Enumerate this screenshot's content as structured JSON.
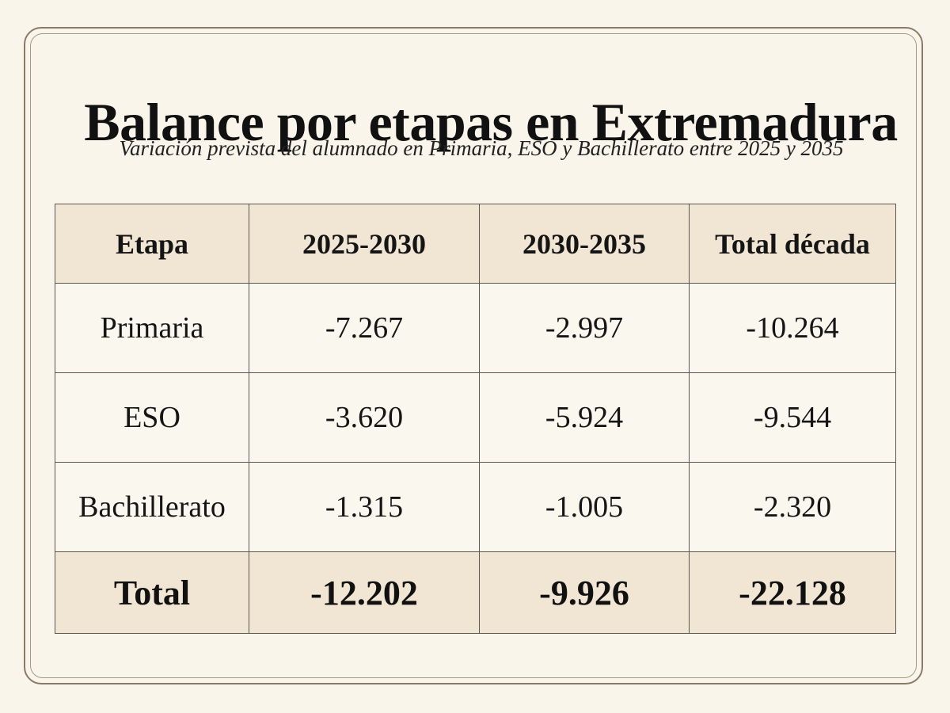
{
  "title": "Balance por etapas en Extremadura",
  "subtitle": "Variación prevista del alumnado en Primaria, ESO y Bachillerato entre 2025 y 2035",
  "table": {
    "headers": [
      "Etapa",
      "2025-2030",
      "2030-2035",
      "Total década"
    ],
    "rows": [
      [
        "Primaria",
        "-7.267",
        "-2.997",
        "-10.264"
      ],
      [
        "ESO",
        "-3.620",
        "-5.924",
        "-9.544"
      ],
      [
        "Bachillerato",
        "-1.315",
        "-1.005",
        "-2.320"
      ]
    ],
    "total_row": [
      "Total",
      "-12.202",
      "-9.926",
      "-22.128"
    ]
  },
  "colors": {
    "background": "#f9f5ea",
    "header_fill": "#f1e5d4",
    "border": "#5c5550",
    "frame": "#8a7a6a"
  }
}
